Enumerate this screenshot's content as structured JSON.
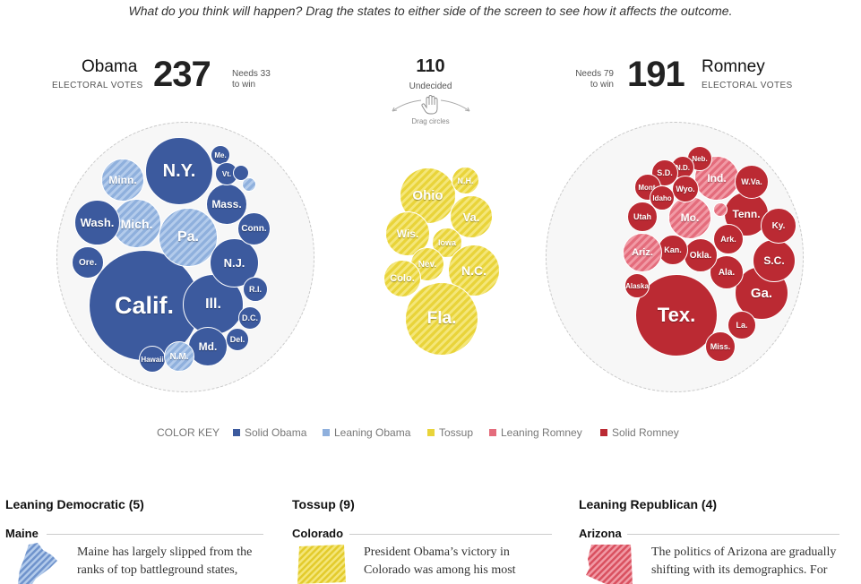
{
  "instruction": "What do you think will happen? Drag the states to either side of the screen to see how it affects the outcome.",
  "obama": {
    "name": "Obama",
    "ev_label": "ELECTORAL VOTES",
    "votes": "237",
    "needs_line1": "Needs 33",
    "needs_line2": "to win"
  },
  "romney": {
    "name": "Romney",
    "ev_label": "ELECTORAL VOTES",
    "votes": "191",
    "needs_line1": "Needs 79",
    "needs_line2": "to win"
  },
  "undecided": {
    "count": "110",
    "label": "Undecided",
    "drag_label": "Drag circles"
  },
  "colors": {
    "solid_obama": "#3c5a9e",
    "leaning_obama": "#8fb0dd",
    "tossup": "#e9d43a",
    "leaning_romney": "#e46c7c",
    "solid_romney": "#bb2a33"
  },
  "color_key": {
    "title": "COLOR KEY",
    "items": [
      "Solid Obama",
      "Leaning Obama",
      "Tossup",
      "Leaning Romney",
      "Solid Romney"
    ]
  },
  "obama_states": [
    "Calif.",
    "N.Y.",
    "Ill.",
    "Pa.",
    "Mich.",
    "Minn.",
    "Wash.",
    "Mass.",
    "N.J.",
    "Md.",
    "Conn.",
    "Ore.",
    "R.I.",
    "D.C.",
    "Del.",
    "Hawaii",
    "N.M.",
    "Me.",
    "Vt."
  ],
  "tossup_states": [
    "Ohio",
    "N.H.",
    "Va.",
    "Wis.",
    "Iowa",
    "Nev.",
    "N.C.",
    "Colo.",
    "Fla."
  ],
  "romney_states": [
    "Tex.",
    "Ga.",
    "S.C.",
    "Tenn.",
    "Ind.",
    "Mo.",
    "W.Va.",
    "Ky.",
    "Ark.",
    "Ala.",
    "Okla.",
    "Kan.",
    "Utah",
    "Ariz.",
    "La.",
    "Miss.",
    "Alaska",
    "Neb.",
    "N.D.",
    "S.D.",
    "Mont.",
    "Wyo.",
    "Idaho"
  ],
  "sections": [
    {
      "heading": "Leaning Democratic (5)",
      "state": "Maine",
      "text_line1": "Maine has largely slipped from the",
      "text_line2": "ranks of top battleground states,"
    },
    {
      "heading": "Tossup (9)",
      "state": "Colorado",
      "text_line1": "President Obama’s victory in",
      "text_line2": "Colorado was among his most"
    },
    {
      "heading": "Leaning Republican (4)",
      "state": "Arizona",
      "text_line1": "The politics of Arizona are gradually",
      "text_line2": "shifting with its demographics. For"
    }
  ]
}
